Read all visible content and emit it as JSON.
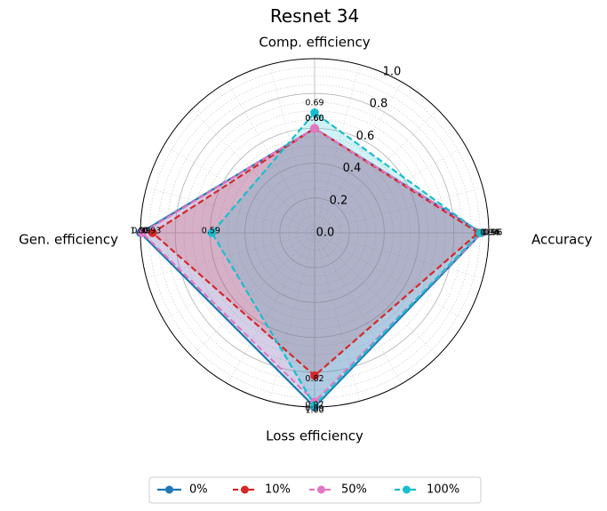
{
  "chart_data": {
    "type": "radar",
    "title": "Resnet 34",
    "axes": [
      "Accuracy",
      "Comp. efficiency",
      "Gen. efficiency",
      "Loss efficiency"
    ],
    "radial_ticks": [
      "0.0",
      "0.2",
      "0.4",
      "0.6",
      "0.8",
      "1.0"
    ],
    "rlim": [
      0,
      1.0
    ],
    "series": [
      {
        "name": "0%",
        "color": "#1f77b4",
        "dashed": false,
        "values": [
          0.96,
          0.6,
          1.0,
          1.0
        ]
      },
      {
        "name": "10%",
        "color": "#d62728",
        "dashed": true,
        "values": [
          0.94,
          0.6,
          0.93,
          0.82
        ]
      },
      {
        "name": "50%",
        "color": "#e377c2",
        "dashed": true,
        "values": [
          0.96,
          0.6,
          0.99,
          0.97
        ]
      },
      {
        "name": "100%",
        "color": "#17becf",
        "dashed": true,
        "values": [
          0.95,
          0.69,
          0.59,
          0.99
        ]
      }
    ],
    "point_labels": {
      "Accuracy": [
        "0.96",
        "0.94",
        "0.96",
        "0.95"
      ],
      "Comp. efficiency": [
        "0.60",
        "0.60",
        "0.60",
        "0.69"
      ],
      "Gen. efficiency": [
        "1.00",
        "0.93",
        "0.99",
        "0.59"
      ],
      "Loss efficiency": [
        "1.00",
        "0.82",
        "0.97",
        "0.99"
      ]
    },
    "legend": [
      "0%",
      "10%",
      "50%",
      "100%"
    ],
    "legend_position": "bottom-center"
  }
}
